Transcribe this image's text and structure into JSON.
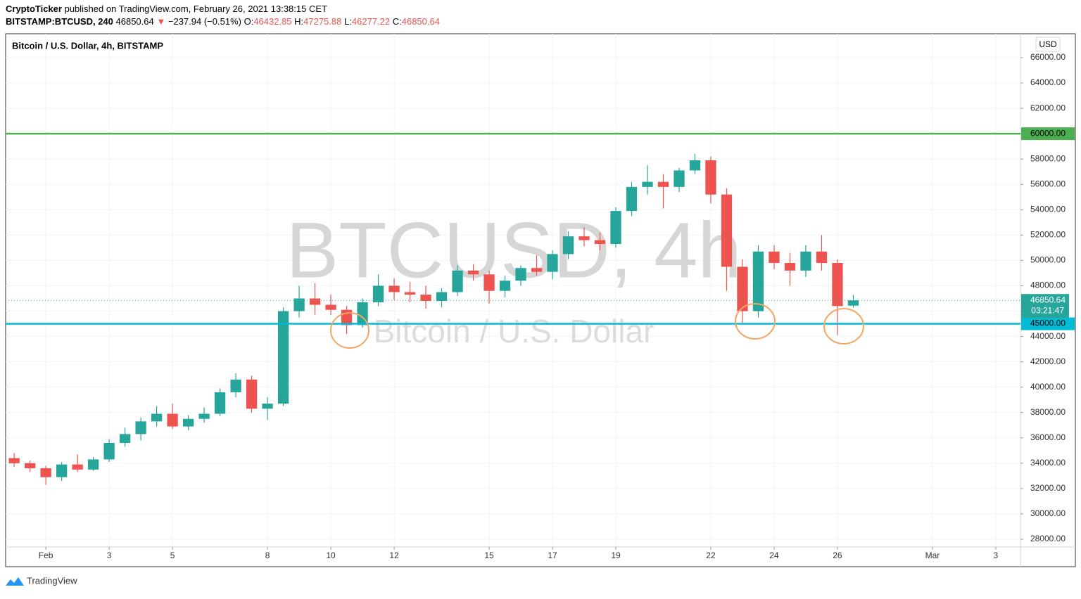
{
  "header": {
    "author": "CryptoTicker",
    "published": "published on TradingView.com, February 26, 2021 13:38:15 CET",
    "symbol": "BITSTAMP:BTCUSD, 240",
    "last": "46850.64",
    "change": "−237.94 (−0.51%)",
    "ohlc": [
      {
        "key": "O:",
        "value": "46432.85"
      },
      {
        "key": "H:",
        "value": "47275.88"
      },
      {
        "key": "L:",
        "value": "46277.22"
      },
      {
        "key": "C:",
        "value": "46850.64"
      }
    ]
  },
  "chart_data": {
    "type": "candlestick",
    "title": "Bitcoin / U.S. Dollar, 4h, BITSTAMP",
    "currency": "USD",
    "watermark": "BTCUSD, 4h",
    "watermark_subtitle": "Bitcoin / U.S. Dollar",
    "up_color": "#26a69a",
    "down_color": "#ef5350",
    "grid": true,
    "x": [
      0,
      0.5,
      1,
      1.5,
      2,
      2.5,
      3,
      3.5,
      4,
      4.5,
      5,
      5.5,
      6,
      6.5,
      7,
      7.5,
      8,
      8.5,
      9,
      9.5,
      10,
      10.5,
      11,
      11.5,
      12,
      12.5,
      13,
      13.5,
      14,
      14.5,
      15,
      15.5,
      16,
      16.5,
      17,
      17.5,
      18,
      18.5,
      19,
      19.5,
      20,
      20.5,
      21,
      21.5,
      22,
      22.5,
      23,
      23.5,
      24,
      24.5,
      25,
      25.5,
      26,
      26.5
    ],
    "open": [
      34400,
      34000,
      33600,
      32900,
      33900,
      33500,
      34300,
      35600,
      36300,
      37300,
      37900,
      36900,
      37500,
      37900,
      39600,
      40600,
      38300,
      38700,
      46000,
      47000,
      46500,
      46100,
      44900,
      46700,
      48000,
      47500,
      47300,
      46800,
      47500,
      49200,
      48900,
      47600,
      48400,
      49400,
      49100,
      50500,
      51900,
      51600,
      51300,
      53900,
      55800,
      56200,
      55800,
      57100,
      57900,
      55200,
      49500,
      46000,
      50700,
      49800,
      49200,
      50700,
      49800,
      46432.85
    ],
    "high": [
      34800,
      34200,
      33800,
      34100,
      34700,
      34500,
      35900,
      36800,
      37600,
      38500,
      38700,
      37800,
      38400,
      39900,
      41100,
      40900,
      39200,
      46300,
      48000,
      48200,
      47300,
      46400,
      47000,
      48900,
      48600,
      48300,
      48000,
      47800,
      49600,
      49700,
      49200,
      48800,
      49600,
      50400,
      50800,
      52300,
      52600,
      52200,
      54200,
      56200,
      57500,
      56800,
      57300,
      58400,
      58200,
      55700,
      50100,
      51200,
      51200,
      50600,
      51200,
      52000,
      50100,
      47275.88
    ],
    "low": [
      33700,
      33300,
      32300,
      32600,
      33300,
      33400,
      34100,
      35300,
      35800,
      36900,
      36700,
      36600,
      37200,
      37700,
      39200,
      38000,
      37400,
      38500,
      45500,
      45700,
      45700,
      44200,
      44700,
      46400,
      46900,
      46700,
      46200,
      46300,
      47200,
      48400,
      46600,
      47100,
      48000,
      48800,
      48500,
      50100,
      51100,
      50800,
      51000,
      53500,
      55200,
      54100,
      55400,
      56800,
      54500,
      47600,
      45000,
      45500,
      49300,
      48000,
      48700,
      49200,
      44100,
      46277.22
    ],
    "close": [
      34000,
      33600,
      32900,
      33900,
      33500,
      34300,
      35600,
      36300,
      37300,
      37900,
      36900,
      37500,
      37900,
      39600,
      40600,
      38300,
      38700,
      46000,
      47000,
      46500,
      46100,
      44900,
      46700,
      48000,
      47500,
      47300,
      46800,
      47500,
      49200,
      48900,
      47600,
      48400,
      49400,
      49100,
      50500,
      51900,
      51600,
      51300,
      53900,
      55800,
      56200,
      55800,
      57100,
      57900,
      55200,
      49500,
      46000,
      50700,
      49800,
      49200,
      50700,
      49800,
      46400,
      46850.64
    ],
    "xlim": [
      -0.27,
      31.78
    ],
    "xticks": [
      {
        "value": 1,
        "label": "Feb"
      },
      3,
      5,
      8,
      10,
      12,
      15,
      17,
      19,
      22,
      24,
      26,
      {
        "value": 29,
        "label": "Mar"
      },
      {
        "value": 31,
        "label": "3"
      }
    ],
    "ylim": [
      27390,
      67886
    ],
    "yticks": [
      {
        "value": 28000,
        "label": "28000.00"
      },
      {
        "value": 30000,
        "label": "30000.00"
      },
      {
        "value": 32000,
        "label": "32000.00"
      },
      {
        "value": 34000,
        "label": "34000.00"
      },
      {
        "value": 36000,
        "label": "36000.00"
      },
      {
        "value": 38000,
        "label": "38000.00"
      },
      {
        "value": 40000,
        "label": "40000.00"
      },
      {
        "value": 42000,
        "label": "42000.00"
      },
      {
        "value": 44000,
        "label": "44000.00"
      },
      {
        "value": 46000,
        "label": "46000.00"
      },
      {
        "value": 48000,
        "label": "48000.00"
      },
      {
        "value": 50000,
        "label": "50000.00"
      },
      {
        "value": 52000,
        "label": "52000.00"
      },
      {
        "value": 54000,
        "label": "54000.00"
      },
      {
        "value": 56000,
        "label": "56000.00"
      },
      {
        "value": 58000,
        "label": "58000.00"
      },
      {
        "value": 60000,
        "label": "60000.00"
      },
      {
        "value": 62000,
        "label": "62000.00"
      },
      {
        "value": 64000,
        "label": "64000.00"
      },
      {
        "value": 66000,
        "label": "66000.00"
      }
    ],
    "price_lines": [
      {
        "value": 60000,
        "label": "60000.00",
        "color": "#4caf50"
      },
      {
        "value": 45000,
        "label": "45000.00",
        "color": "#00bcd4"
      }
    ],
    "current_price": {
      "value": 46850.64,
      "label": "46850.64",
      "countdown": "03:21:47",
      "color": "#26a69a"
    }
  },
  "footer": {
    "brand": "TradingView"
  }
}
